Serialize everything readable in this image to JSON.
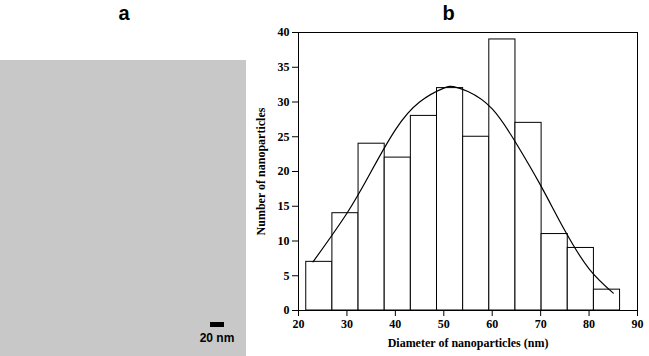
{
  "panel_labels": [
    "a",
    "b"
  ],
  "micrograph": {
    "scale_bar_label": "20 nm"
  },
  "chart_data": {
    "type": "histogram",
    "xlabel": "Diameter of nanoparticles (nm)",
    "ylabel": "Number of nanoparticles",
    "bins": [
      21.6,
      27,
      32.4,
      37.8,
      43.2,
      48.6,
      54,
      59.4,
      64.8,
      70.2,
      75.6,
      81,
      86.4
    ],
    "counts": [
      7,
      14,
      24,
      22,
      28,
      32,
      25,
      39,
      27,
      11,
      9,
      3
    ],
    "color": "#ffffff",
    "fit_curve": {
      "x": [
        23,
        30,
        35,
        40,
        45,
        50,
        52,
        55,
        60,
        65,
        70,
        75,
        80,
        85
      ],
      "y": [
        7,
        14,
        20,
        26,
        30,
        32,
        32.2,
        31.5,
        29,
        24,
        18,
        11.5,
        6,
        2.5
      ]
    },
    "xlim": [
      20,
      90
    ],
    "xticks": [
      20,
      30,
      40,
      50,
      60,
      70,
      80,
      90
    ],
    "ylim": [
      0,
      40
    ],
    "yticks": [
      0,
      5,
      10,
      15,
      20,
      25,
      30,
      35,
      40
    ],
    "grid": false
  }
}
